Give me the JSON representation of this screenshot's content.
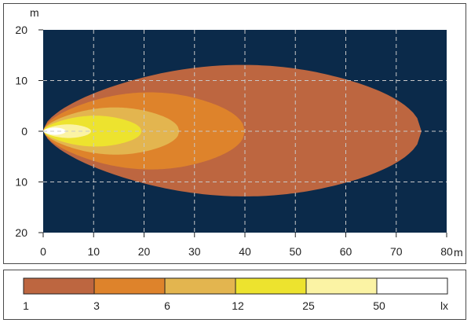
{
  "chart_data": {
    "type": "area",
    "xlabel_unit": "m",
    "ylabel_unit": "m",
    "xlim": [
      0,
      80
    ],
    "ylim": [
      -20,
      20
    ],
    "x_ticks": [
      0,
      10,
      20,
      30,
      40,
      50,
      60,
      70,
      80
    ],
    "y_ticks": [
      20,
      10,
      0,
      -10,
      -20
    ],
    "y_tick_labels": [
      "20",
      "10",
      "0",
      "10",
      "20"
    ],
    "grid": true,
    "background_color": "#0b2a4a",
    "series": [
      {
        "level": "1",
        "length": 75,
        "half_width": 14.5,
        "color": "#bd6640"
      },
      {
        "level": "3",
        "length": 40,
        "half_width": 8.5,
        "color": "#de832b"
      },
      {
        "level": "6",
        "length": 27,
        "half_width": 5.2,
        "color": "#e3b54f"
      },
      {
        "level": "12",
        "length": 19.5,
        "half_width": 3.4,
        "color": "#ede32e"
      },
      {
        "level": "25",
        "length": 9.5,
        "half_width": 1.5,
        "color": "#fbf3a4"
      },
      {
        "level": "50",
        "length": 4.5,
        "half_width": 0.8,
        "color": "#ffffff"
      }
    ],
    "legend": {
      "labels": [
        "1",
        "3",
        "6",
        "12",
        "25",
        "50"
      ],
      "unit": "lx",
      "colors": [
        "#bd6640",
        "#de832b",
        "#e3b54f",
        "#ede32e",
        "#fbf3a4",
        "#ffffff"
      ]
    }
  }
}
